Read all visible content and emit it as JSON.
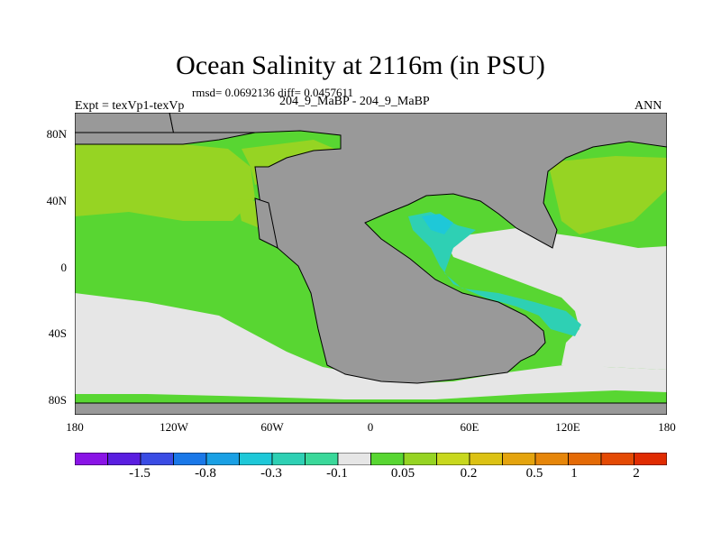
{
  "title": "Ocean Salinity at 2116m (in PSU)",
  "stats": "rmsd= 0.0692136  diff= 0.0457611",
  "experiment": "Expt = texVp1-texVp",
  "cases": "204_9_MaBP - 204_9_MaBP",
  "season": "ANN",
  "map": {
    "lon_range": [
      -180,
      180
    ],
    "lat_range": [
      -90,
      90
    ],
    "y_ticks": [
      "80N",
      "40N",
      "0",
      "40S",
      "80S"
    ],
    "x_ticks": [
      "180",
      "120W",
      "60W",
      "0",
      "60E",
      "120E",
      "180"
    ]
  },
  "colors": {
    "land": "#999999",
    "near_zero": "#e6e6e6",
    "small_positive": "#58d632",
    "mid_positive": "#96d423",
    "small_negative": "#2ed0b4",
    "cyan": "#1ec8d8"
  },
  "colorbar": {
    "colors": [
      "#8a14e6",
      "#5a1ee0",
      "#3a4ce4",
      "#1a78e8",
      "#1aa0e4",
      "#1ec8d8",
      "#2ed0b4",
      "#3ad89a",
      "#e6e6e6",
      "#58d632",
      "#96d423",
      "#c8d81e",
      "#dcc214",
      "#e4a40e",
      "#e6860a",
      "#e46a06",
      "#e44a04",
      "#e02c02"
    ],
    "labels": [
      "-1.5",
      "-0.8",
      "-0.3",
      "-0.1",
      "0.05",
      "0.2",
      "0.5",
      "1",
      "2"
    ]
  }
}
